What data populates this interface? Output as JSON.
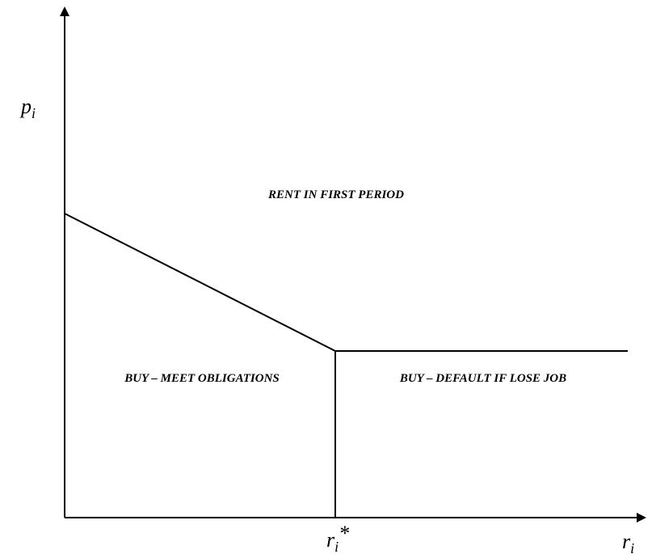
{
  "axes": {
    "y_label": {
      "symbol": "p",
      "subscript": "i"
    },
    "x_label": {
      "symbol": "r",
      "subscript": "i"
    },
    "threshold_label": {
      "symbol": "r",
      "subscript": "i",
      "superscript": "*"
    }
  },
  "regions": {
    "upper": "RENT IN FIRST PERIOD",
    "lower_left": "BUY – MEET OBLIGATIONS",
    "lower_right": "BUY – DEFAULT IF LOSE JOB"
  }
}
